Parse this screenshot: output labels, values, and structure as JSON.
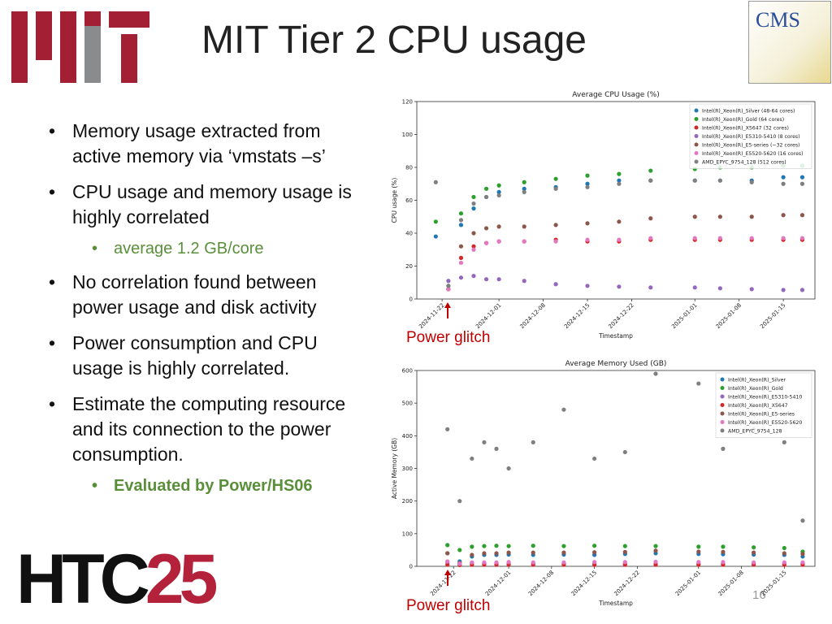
{
  "title": "MIT Tier 2 CPU usage",
  "bullets": [
    {
      "text": "Memory usage extracted from active memory via ‘vmstats –s’",
      "level": 1,
      "bold": false
    },
    {
      "text": "CPU usage and memory usage is highly correlated",
      "level": 1,
      "bold": false
    },
    {
      "text": "average 1.2 GB/core",
      "level": 2,
      "bold": false
    },
    {
      "text": "No correlation found between power usage and disk activity",
      "level": 1,
      "bold": false
    },
    {
      "text": "Power consumption and CPU usage is highly correlated.",
      "level": 1,
      "bold": false
    },
    {
      "text": "Estimate the computing resource and its connection to the power consumption.",
      "level": 1,
      "bold": false
    },
    {
      "text": "Evaluated by Power/HS06",
      "level": 2,
      "bold": true
    }
  ],
  "logos": {
    "cms": "CMS",
    "htc_a": "HTC",
    "htc_b": "25"
  },
  "page_number": "16",
  "chart_data": [
    {
      "type": "scatter",
      "title": "Average CPU Usage (%)",
      "xlabel": "Timestamp",
      "ylabel": "CPU usage (%)",
      "annotation": "Power glitch",
      "legend": "upper right",
      "x": [
        "2024-11-21",
        "2024-11-23",
        "2024-11-25",
        "2024-11-27",
        "2024-11-29",
        "2024-12-01",
        "2024-12-05",
        "2024-12-10",
        "2024-12-15",
        "2024-12-20",
        "2024-12-25",
        "2025-01-01",
        "2025-01-05",
        "2025-01-10",
        "2025-01-15",
        "2025-01-18"
      ],
      "xlim": [
        "2024-11-18",
        "2025-01-20"
      ],
      "xticks": [
        "2024-11-22",
        "2024-12-01",
        "2024-12-08",
        "2024-12-15",
        "2024-12-22",
        "2025-01-01",
        "2025-01-08",
        "2025-01-15"
      ],
      "ylim": [
        0,
        120
      ],
      "yticks": [
        0,
        20,
        40,
        60,
        80,
        100,
        120
      ],
      "series": [
        {
          "name": "Intel(R)_Xeon(R)_Silver (48-64 cores)",
          "color": "#1f77b4",
          "values": [
            38,
            6,
            45,
            55,
            62,
            65,
            67,
            68,
            70,
            72,
            72,
            72,
            72,
            72,
            74,
            74
          ]
        },
        {
          "name": "Intel(R)_Xeon(R)_Gold (64 cores)",
          "color": "#2ca02c",
          "values": [
            47,
            8,
            52,
            62,
            67,
            69,
            71,
            73,
            75,
            76,
            78,
            79,
            80,
            80,
            81,
            81
          ]
        },
        {
          "name": "Intel(R)_Xeon(R)_X5647 (32 cores)",
          "color": "#d62728",
          "values": [
            null,
            6,
            25,
            32,
            34,
            35,
            35,
            36,
            35,
            35,
            36,
            36,
            36,
            36,
            36,
            36
          ]
        },
        {
          "name": "Intel(R)_Xeon(R)_E5310-5410 (8 cores)",
          "color": "#9467bd",
          "values": [
            null,
            11,
            13,
            14,
            12,
            12,
            11,
            9,
            8,
            7.5,
            7,
            7,
            6.5,
            6,
            5.5,
            5.5
          ]
        },
        {
          "name": "Intel(R)_Xeon(R)_E5-series (~32 cores)",
          "color": "#8c564b",
          "values": [
            null,
            6,
            32,
            40,
            43,
            44,
            44,
            45,
            46,
            47,
            49,
            50,
            50,
            50,
            51,
            51
          ]
        },
        {
          "name": "Intel(R)_Xeon(R)_E5520-5620 (16 cores)",
          "color": "#e377c2",
          "values": [
            null,
            6,
            22,
            30,
            34,
            35,
            35,
            35,
            36,
            36,
            37,
            37,
            37,
            37,
            37,
            37
          ]
        },
        {
          "name": "AMD_EPYC_9754_128 (512 cores)",
          "color": "#7f7f7f",
          "values": [
            71,
            8,
            48,
            58,
            62,
            63,
            65,
            67,
            68,
            70,
            72,
            72,
            72,
            71,
            70,
            70
          ]
        }
      ]
    },
    {
      "type": "scatter",
      "title": "Average Memory Used (GB)",
      "xlabel": "Timestamp",
      "ylabel": "Active Memory (GB)",
      "annotation": "Power glitch",
      "legend": "upper right",
      "x": [
        "2024-11-21",
        "2024-11-23",
        "2024-11-25",
        "2024-11-27",
        "2024-11-29",
        "2024-12-01",
        "2024-12-05",
        "2024-12-10",
        "2024-12-15",
        "2024-12-20",
        "2024-12-25",
        "2025-01-01",
        "2025-01-05",
        "2025-01-10",
        "2025-01-15",
        "2025-01-18"
      ],
      "xlim": [
        "2024-11-16",
        "2025-01-20"
      ],
      "xticks": [
        "2024-11-22",
        "2024-12-01",
        "2024-12-08",
        "2024-12-15",
        "2024-12-22",
        "2025-01-01",
        "2025-01-08",
        "2025-01-15"
      ],
      "ylim": [
        0,
        600
      ],
      "yticks": [
        0,
        100,
        200,
        300,
        400,
        500,
        600
      ],
      "series": [
        {
          "name": "Intel(R)_Xeon(R)_Silver",
          "color": "#1f77b4",
          "values": [
            40,
            15,
            30,
            35,
            35,
            36,
            35,
            36,
            35,
            38,
            40,
            38,
            37,
            36,
            35,
            30
          ]
        },
        {
          "name": "Intel(R)_Xeon(R)_Gold",
          "color": "#2ca02c",
          "values": [
            65,
            50,
            60,
            62,
            63,
            62,
            63,
            62,
            63,
            62,
            62,
            60,
            60,
            58,
            56,
            45
          ]
        },
        {
          "name": "Intel(R)_Xeon(R)_E5310-5410",
          "color": "#9467bd",
          "values": [
            12,
            8,
            10,
            10,
            9,
            9,
            9,
            8,
            8,
            8,
            8,
            8,
            8,
            8,
            8,
            8
          ]
        },
        {
          "name": "Intel(R)_Xeon(R)_X5647",
          "color": "#d62728",
          "values": [
            5,
            4,
            5,
            5,
            5,
            5,
            5,
            5,
            5,
            5,
            5,
            5,
            5,
            5,
            5,
            5
          ]
        },
        {
          "name": "Intel(R)_Xeon(R)_E5-series",
          "color": "#8c564b",
          "values": [
            40,
            10,
            35,
            40,
            40,
            42,
            42,
            42,
            43,
            44,
            48,
            45,
            44,
            42,
            40,
            38
          ]
        },
        {
          "name": "Intel(R)_Xeon(R)_E5520-5620",
          "color": "#e377c2",
          "values": [
            15,
            8,
            12,
            12,
            12,
            13,
            12,
            12,
            13,
            13,
            14,
            13,
            13,
            12,
            12,
            12
          ]
        },
        {
          "name": "AMD_EPYC_9754_128",
          "color": "#7f7f7f",
          "values": [
            420,
            200,
            330,
            380,
            360,
            300,
            380,
            480,
            330,
            350,
            590,
            560,
            360,
            420,
            380,
            140
          ]
        }
      ]
    }
  ]
}
